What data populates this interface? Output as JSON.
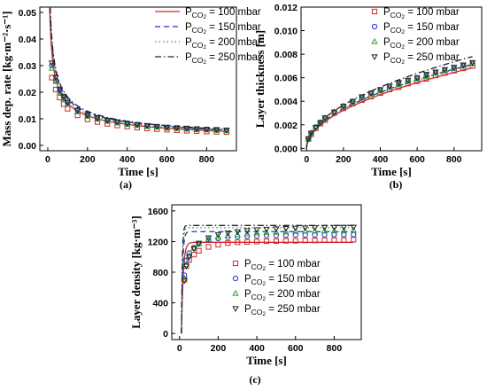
{
  "colors": {
    "p100": "#d62728",
    "p150": "#1f2fd6",
    "p200": "#2ca02c",
    "p250": "#222222"
  },
  "legend": {
    "base": "P",
    "sub": "CO",
    "sub2": "2",
    "series": [
      {
        "value": " = 100 mbar",
        "marker": "square",
        "dash": "solid",
        "color": "#d62728"
      },
      {
        "value": " = 150 mbar",
        "marker": "circle",
        "dash": "dash",
        "color": "#1f2fd6"
      },
      {
        "value": " = 200 mbar",
        "marker": "triangle-up",
        "dash": "dot",
        "color": "#2ca02c"
      },
      {
        "value": " = 250 mbar",
        "marker": "triangle-down",
        "dash": "dashdot",
        "color": "#222222"
      }
    ]
  },
  "chart_data": [
    {
      "type": "line",
      "caption": "(a)",
      "title": "",
      "xlabel": "Time [s]",
      "ylabel": "Mass dep. rate [kg·m⁻²·s⁻¹]",
      "xlim": [
        -40,
        950
      ],
      "ylim": [
        -0.002,
        0.052
      ],
      "xticks": [
        "0",
        "200",
        "400",
        "600",
        "800"
      ],
      "yticks": [
        "0.00",
        "0.01",
        "0.02",
        "0.03",
        "0.04",
        "0.05"
      ],
      "legend_position": "top-right",
      "curves": [
        {
          "name": "100 mbar",
          "coef": 0.158
        },
        {
          "name": "150 mbar",
          "coef": 0.176
        },
        {
          "name": "200 mbar",
          "coef": 0.168
        },
        {
          "name": "250 mbar",
          "coef": 0.182
        }
      ],
      "points_x": [
        20,
        40,
        60,
        80,
        100,
        150,
        200,
        250,
        300,
        350,
        400,
        450,
        500,
        550,
        600,
        650,
        700,
        750,
        800,
        850,
        900
      ],
      "points": [
        {
          "name": "100 mbar",
          "values": [
            0.0255,
            0.021,
            0.018,
            0.0155,
            0.0138,
            0.0113,
            0.0098,
            0.0088,
            0.0081,
            0.0075,
            0.0071,
            0.0067,
            0.0064,
            0.0061,
            0.0059,
            0.0057,
            0.0055,
            0.0054,
            0.0052,
            0.0051,
            0.005
          ]
        },
        {
          "name": "150 mbar",
          "values": [
            0.03,
            0.0245,
            0.0205,
            0.018,
            0.016,
            0.013,
            0.0112,
            0.0101,
            0.0093,
            0.0087,
            0.0081,
            0.0077,
            0.0073,
            0.007,
            0.0067,
            0.0065,
            0.0063,
            0.0061,
            0.006,
            0.0058,
            0.0057
          ]
        },
        {
          "name": "200 mbar",
          "values": [
            0.029,
            0.024,
            0.02,
            0.0175,
            0.0155,
            0.0126,
            0.0109,
            0.0098,
            0.009,
            0.0084,
            0.0079,
            0.0075,
            0.0071,
            0.0068,
            0.0065,
            0.0063,
            0.0061,
            0.0059,
            0.0058,
            0.0056,
            0.0055
          ]
        },
        {
          "name": "250 mbar",
          "values": [
            0.031,
            0.0255,
            0.021,
            0.0185,
            0.0163,
            0.0133,
            0.0115,
            0.0104,
            0.0095,
            0.0089,
            0.0083,
            0.0079,
            0.0075,
            0.0072,
            0.0069,
            0.0067,
            0.0065,
            0.0063,
            0.0061,
            0.006,
            0.0058
          ]
        }
      ]
    },
    {
      "type": "line",
      "caption": "(b)",
      "title": "",
      "xlabel": "Time [s]",
      "ylabel": "Layer thickness [m]",
      "xlim": [
        -30,
        950
      ],
      "ylim": [
        -0.0002,
        0.012
      ],
      "xticks": [
        "0",
        "200",
        "400",
        "600",
        "800"
      ],
      "yticks": [
        "0.000",
        "0.002",
        "0.004",
        "0.006",
        "0.008",
        "0.010",
        "0.012"
      ],
      "legend_position": "top-right",
      "curves": [
        {
          "name": "100 mbar",
          "coef": 0.000228
        },
        {
          "name": "150 mbar",
          "coef": 0.000238
        },
        {
          "name": "200 mbar",
          "coef": 0.000236
        },
        {
          "name": "250 mbar",
          "coef": 0.00026
        }
      ],
      "points_x": [
        10,
        25,
        50,
        75,
        100,
        150,
        200,
        250,
        300,
        350,
        400,
        450,
        500,
        550,
        600,
        650,
        700,
        750,
        800,
        850,
        900
      ],
      "points": [
        {
          "name": "100 mbar",
          "values": [
            0.0008,
            0.0012,
            0.0017,
            0.0021,
            0.0024,
            0.003,
            0.0034,
            0.0038,
            0.0041,
            0.0044,
            0.0047,
            0.005,
            0.0052,
            0.0055,
            0.0057,
            0.0059,
            0.0062,
            0.0064,
            0.0066,
            0.0068,
            0.007
          ]
        },
        {
          "name": "150 mbar",
          "values": [
            0.0008,
            0.0013,
            0.0018,
            0.0022,
            0.0026,
            0.0031,
            0.0036,
            0.004,
            0.0043,
            0.0047,
            0.0049,
            0.0052,
            0.0055,
            0.0057,
            0.006,
            0.0062,
            0.0064,
            0.0066,
            0.0068,
            0.007,
            0.0072
          ]
        },
        {
          "name": "200 mbar",
          "values": [
            0.0008,
            0.0013,
            0.0018,
            0.0022,
            0.0025,
            0.0031,
            0.0035,
            0.0039,
            0.0043,
            0.0046,
            0.0049,
            0.0052,
            0.0054,
            0.0057,
            0.0059,
            0.0061,
            0.0064,
            0.0066,
            0.0068,
            0.007,
            0.0072
          ]
        },
        {
          "name": "250 mbar",
          "values": [
            0.0008,
            0.0013,
            0.0018,
            0.0022,
            0.0026,
            0.0031,
            0.0036,
            0.004,
            0.0044,
            0.0047,
            0.005,
            0.0053,
            0.0056,
            0.0058,
            0.006,
            0.0063,
            0.0065,
            0.0067,
            0.0069,
            0.0071,
            0.0073
          ]
        }
      ]
    },
    {
      "type": "line",
      "caption": "(c)",
      "title": "",
      "xlabel": "Time [s]",
      "ylabel": "Layer density [kg·m⁻³]",
      "xlim": [
        -40,
        940
      ],
      "ylim": [
        -80,
        1680
      ],
      "xticks": [
        "0",
        "200",
        "400",
        "600",
        "800"
      ],
      "yticks": [
        "0",
        "400",
        "800",
        "1200",
        "1600"
      ],
      "legend_position": "bottom-right",
      "curves": [
        {
          "name": "100 mbar",
          "plateau": 1190,
          "tau": 9
        },
        {
          "name": "150 mbar",
          "plateau": 1330,
          "tau": 6
        },
        {
          "name": "200 mbar",
          "plateau": 1380,
          "tau": 5
        },
        {
          "name": "250 mbar",
          "plateau": 1410,
          "tau": 4
        }
      ],
      "points_x": [
        25,
        35,
        50,
        75,
        100,
        150,
        200,
        250,
        300,
        350,
        400,
        450,
        500,
        550,
        600,
        650,
        700,
        750,
        800,
        850,
        900
      ],
      "points": [
        {
          "name": "100 mbar",
          "values": [
            700,
            880,
            960,
            1030,
            1080,
            1130,
            1160,
            1180,
            1190,
            1195,
            1200,
            1205,
            1205,
            1210,
            1210,
            1215,
            1215,
            1220,
            1220,
            1220,
            1225
          ]
        },
        {
          "name": "150 mbar",
          "values": [
            760,
            950,
            1050,
            1120,
            1170,
            1220,
            1240,
            1255,
            1265,
            1270,
            1275,
            1280,
            1280,
            1282,
            1285,
            1285,
            1287,
            1288,
            1290,
            1290,
            1290
          ]
        },
        {
          "name": "200 mbar",
          "values": [
            720,
            900,
            1020,
            1110,
            1170,
            1230,
            1260,
            1280,
            1290,
            1300,
            1310,
            1315,
            1320,
            1325,
            1330,
            1333,
            1335,
            1338,
            1340,
            1342,
            1345
          ]
        },
        {
          "name": "250 mbar",
          "values": [
            690,
            880,
            1000,
            1110,
            1180,
            1250,
            1290,
            1315,
            1330,
            1345,
            1355,
            1362,
            1368,
            1372,
            1376,
            1380,
            1382,
            1384,
            1386,
            1388,
            1390
          ]
        }
      ]
    }
  ]
}
